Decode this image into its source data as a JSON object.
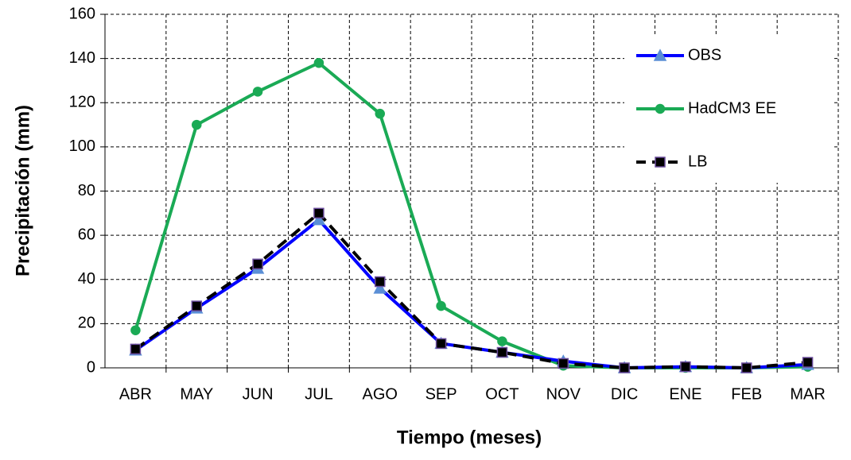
{
  "chart_data": {
    "type": "line",
    "xlabel": "Tiempo (meses)",
    "ylabel": "Precipitación (mm)",
    "categories": [
      "ABR",
      "MAY",
      "JUN",
      "JUL",
      "AGO",
      "SEP",
      "OCT",
      "NOV",
      "DIC",
      "ENE",
      "FEB",
      "MAR"
    ],
    "series": [
      {
        "name": "OBS",
        "color": "#0000ff",
        "values": [
          8,
          27,
          45,
          67,
          36,
          11,
          7,
          3,
          0,
          0.5,
          0,
          1.5
        ]
      },
      {
        "name": "HadCM3 EE",
        "color": "#1aaa55",
        "values": [
          17,
          110,
          125,
          138,
          115,
          28,
          12,
          1,
          0,
          0,
          0,
          0.5
        ]
      },
      {
        "name": "LB",
        "color": "#000000",
        "values": [
          8.5,
          28,
          47,
          70,
          39,
          11,
          7,
          2,
          0,
          0.5,
          0,
          2.5
        ]
      }
    ],
    "ylim": [
      0,
      160
    ],
    "yticks": [
      0,
      20,
      40,
      60,
      80,
      100,
      120,
      140,
      160
    ],
    "grid": true,
    "legend": "upper right"
  }
}
